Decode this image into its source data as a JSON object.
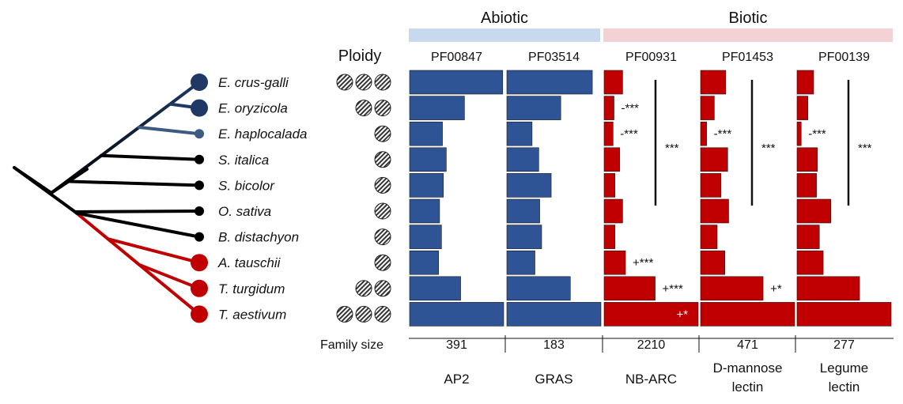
{
  "chart_data": {
    "type": "bar",
    "orientation": "horizontal",
    "species": [
      "E. crus-galli",
      "E. oryzicola",
      "E. haplocalada",
      "S. italica",
      "S. bicolor",
      "O. sativa",
      "B. distachyon",
      "A. tauschii",
      "T. turgidum",
      "T. aestivum"
    ],
    "ploidy_label": "Ploidy",
    "ploidy": [
      3,
      2,
      1,
      1,
      1,
      1,
      1,
      1,
      2,
      3
    ],
    "groups": [
      {
        "label": "Abiotic",
        "color": "#c8d9ef"
      },
      {
        "label": "Biotic",
        "color": "#f4d1d4"
      }
    ],
    "families": [
      {
        "pfam": "PF00847",
        "name": "AP2",
        "family_size": "391",
        "group": "Abiotic",
        "color": "#2f5496",
        "values": [
          0.99,
          0.59,
          0.36,
          0.4,
          0.37,
          0.33,
          0.35,
          0.32,
          0.55,
          1.0
        ],
        "pair_annotations": [
          "",
          "",
          "",
          "",
          "",
          "",
          "",
          "",
          "",
          ""
        ],
        "bracket_annotation": ""
      },
      {
        "pfam": "PF03514",
        "name": "GRAS",
        "family_size": "183",
        "group": "Abiotic",
        "color": "#2f5496",
        "values": [
          0.91,
          0.58,
          0.28,
          0.35,
          0.48,
          0.36,
          0.38,
          0.31,
          0.68,
          1.0
        ],
        "pair_annotations": [
          "",
          "",
          "",
          "",
          "",
          "",
          "",
          "",
          "",
          ""
        ],
        "bracket_annotation": ""
      },
      {
        "pfam": "PF00931",
        "name": "NB-ARC",
        "family_size": "2210",
        "group": "Biotic",
        "color": "#c00000",
        "values": [
          0.21,
          0.12,
          0.11,
          0.18,
          0.13,
          0.21,
          0.13,
          0.24,
          0.55,
          1.0
        ],
        "pair_annotations": [
          "",
          "-***",
          "-***",
          "",
          "",
          "",
          "",
          "+***",
          "+***",
          "+*"
        ],
        "bracket_annotation": "***"
      },
      {
        "pfam": "PF01453",
        "name": "D-mannose lectin",
        "family_size": "471",
        "group": "Biotic",
        "color": "#c00000",
        "values": [
          0.28,
          0.16,
          0.08,
          0.3,
          0.23,
          0.31,
          0.19,
          0.27,
          0.67,
          1.0
        ],
        "pair_annotations": [
          "",
          "",
          "-***",
          "",
          "",
          "",
          "",
          "",
          "+*",
          ""
        ],
        "bracket_annotation": "***"
      },
      {
        "pfam": "PF00139",
        "name": "Legume lectin",
        "family_size": "277",
        "group": "Biotic",
        "color": "#c00000",
        "values": [
          0.19,
          0.13,
          0.06,
          0.23,
          0.22,
          0.37,
          0.25,
          0.29,
          0.67,
          1.0
        ],
        "pair_annotations": [
          "",
          "",
          "-***",
          "",
          "",
          "",
          "",
          "",
          "",
          ""
        ],
        "bracket_annotation": "***"
      }
    ],
    "family_size_label": "Family size",
    "node_colors": [
      "#1f3864",
      "#1f3864",
      "#3d5a80",
      "#000000",
      "#000000",
      "#000000",
      "#000000",
      "#c00000",
      "#c00000",
      "#c00000"
    ],
    "grid": false,
    "legend": "none"
  }
}
